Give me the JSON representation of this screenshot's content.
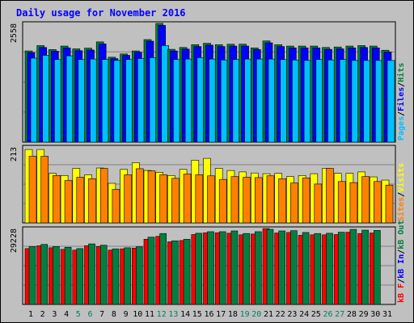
{
  "chart_data": [
    {
      "type": "bar",
      "panel": "top",
      "title": "Daily usage for November 2016",
      "ymax_label": "2558",
      "legend": [
        "Pages",
        "/",
        "Files",
        "/",
        "Hits"
      ],
      "legend_colors": [
        "#00c0ff",
        "#000000",
        "#0000ff",
        "#000000",
        "#008040"
      ],
      "categories": [
        "1",
        "2",
        "3",
        "4",
        "5",
        "6",
        "7",
        "8",
        "9",
        "10",
        "11",
        "12",
        "13",
        "14",
        "15",
        "16",
        "17",
        "18",
        "19",
        "20",
        "21",
        "22",
        "23",
        "24",
        "25",
        "26",
        "27",
        "28",
        "29",
        "30",
        "31"
      ],
      "series": [
        {
          "name": "Hits",
          "color": "#008040",
          "values": [
            1965,
            2080,
            1995,
            2070,
            2010,
            2025,
            2160,
            1830,
            1900,
            1965,
            2210,
            2558,
            2000,
            2040,
            2100,
            2130,
            2100,
            2110,
            2110,
            2030,
            2180,
            2100,
            2070,
            2070,
            2070,
            2040,
            2050,
            2070,
            2080,
            2070,
            1980
          ]
        },
        {
          "name": "Files",
          "color": "#0000ff",
          "values": [
            1930,
            2040,
            1960,
            2030,
            1970,
            1985,
            2115,
            1800,
            1870,
            1935,
            2175,
            2515,
            1965,
            2005,
            2060,
            2090,
            2060,
            2070,
            2070,
            1995,
            2140,
            2060,
            2030,
            2030,
            2030,
            2000,
            2010,
            2030,
            2040,
            2030,
            1940
          ]
        },
        {
          "name": "Pages",
          "color": "#00c0ff",
          "values": [
            1810,
            1870,
            1780,
            1860,
            1780,
            1790,
            1780,
            1760,
            1780,
            1800,
            1820,
            2080,
            1780,
            1790,
            1820,
            1790,
            1770,
            1780,
            1790,
            1790,
            1790,
            1780,
            1770,
            1760,
            1780,
            1770,
            1780,
            1760,
            1760,
            1760,
            1760
          ]
        }
      ]
    },
    {
      "type": "bar",
      "panel": "middle",
      "ymax_label": "213",
      "legend": [
        "Sites",
        "/",
        "Visits"
      ],
      "legend_colors": [
        "#ff8000",
        "#000000",
        "#ffff00"
      ],
      "series": [
        {
          "name": "Visits",
          "color": "#ffff00",
          "values": [
            206,
            206,
            139,
            133,
            153,
            135,
            154,
            111,
            150,
            169,
            147,
            142,
            133,
            150,
            176,
            181,
            153,
            147,
            143,
            140,
            138,
            139,
            130,
            133,
            138,
            153,
            139,
            139,
            143,
            129,
            120
          ]
        },
        {
          "name": "Sites",
          "color": "#ff8000",
          "values": [
            187,
            187,
            133,
            119,
            128,
            124,
            153,
            94,
            135,
            152,
            146,
            135,
            125,
            137,
            135,
            132,
            122,
            130,
            128,
            127,
            132,
            124,
            112,
            126,
            109,
            153,
            116,
            113,
            130,
            116,
            106
          ]
        }
      ]
    },
    {
      "type": "bar",
      "panel": "bottom",
      "ymax_label": "29228",
      "legend": [
        "kB F",
        "/",
        "kB In",
        "/",
        "kB Out"
      ],
      "legend_colors": [
        "#ff0000",
        "#000000",
        "#0000ff",
        "#000000",
        "#008040"
      ],
      "series": [
        {
          "name": "kB F",
          "color": "#ff0000",
          "values": [
            21500,
            22600,
            21800,
            21200,
            20900,
            22600,
            22300,
            20900,
            21400,
            21700,
            25100,
            26200,
            24100,
            24600,
            26900,
            27600,
            27600,
            27400,
            26800,
            27100,
            29200,
            27500,
            27700,
            26600,
            26800,
            26800,
            26900,
            27800,
            27300,
            27500,
            0
          ]
        },
        {
          "name": "kB Out",
          "color": "#008040",
          "values": [
            22300,
            23100,
            22300,
            22000,
            21500,
            23300,
            22800,
            21400,
            21800,
            22200,
            25900,
            27300,
            24500,
            25100,
            27400,
            28000,
            28000,
            28300,
            27300,
            28000,
            28900,
            28300,
            28400,
            27700,
            27300,
            27400,
            27800,
            28900,
            28600,
            28500,
            0
          ]
        }
      ]
    }
  ],
  "x_labels": [
    {
      "label": "1",
      "weekend": false
    },
    {
      "label": "2",
      "weekend": false
    },
    {
      "label": "3",
      "weekend": false
    },
    {
      "label": "4",
      "weekend": false
    },
    {
      "label": "5",
      "weekend": true
    },
    {
      "label": "6",
      "weekend": true
    },
    {
      "label": "7",
      "weekend": false
    },
    {
      "label": "8",
      "weekend": false
    },
    {
      "label": "9",
      "weekend": false
    },
    {
      "label": "10",
      "weekend": false
    },
    {
      "label": "11",
      "weekend": false
    },
    {
      "label": "12",
      "weekend": true
    },
    {
      "label": "13",
      "weekend": true
    },
    {
      "label": "14",
      "weekend": false
    },
    {
      "label": "15",
      "weekend": false
    },
    {
      "label": "16",
      "weekend": false
    },
    {
      "label": "17",
      "weekend": false
    },
    {
      "label": "18",
      "weekend": false
    },
    {
      "label": "19",
      "weekend": true
    },
    {
      "label": "20",
      "weekend": true
    },
    {
      "label": "21",
      "weekend": false
    },
    {
      "label": "22",
      "weekend": false
    },
    {
      "label": "23",
      "weekend": false
    },
    {
      "label": "24",
      "weekend": false
    },
    {
      "label": "25",
      "weekend": false
    },
    {
      "label": "26",
      "weekend": true
    },
    {
      "label": "27",
      "weekend": true
    },
    {
      "label": "28",
      "weekend": false
    },
    {
      "label": "29",
      "weekend": false
    },
    {
      "label": "30",
      "weekend": false
    },
    {
      "label": "31",
      "weekend": false
    }
  ],
  "colors": {
    "weekend_label": "#00805c",
    "weekday_label": "#000000",
    "background": "#c0c0c0",
    "title": "#0000ff"
  }
}
